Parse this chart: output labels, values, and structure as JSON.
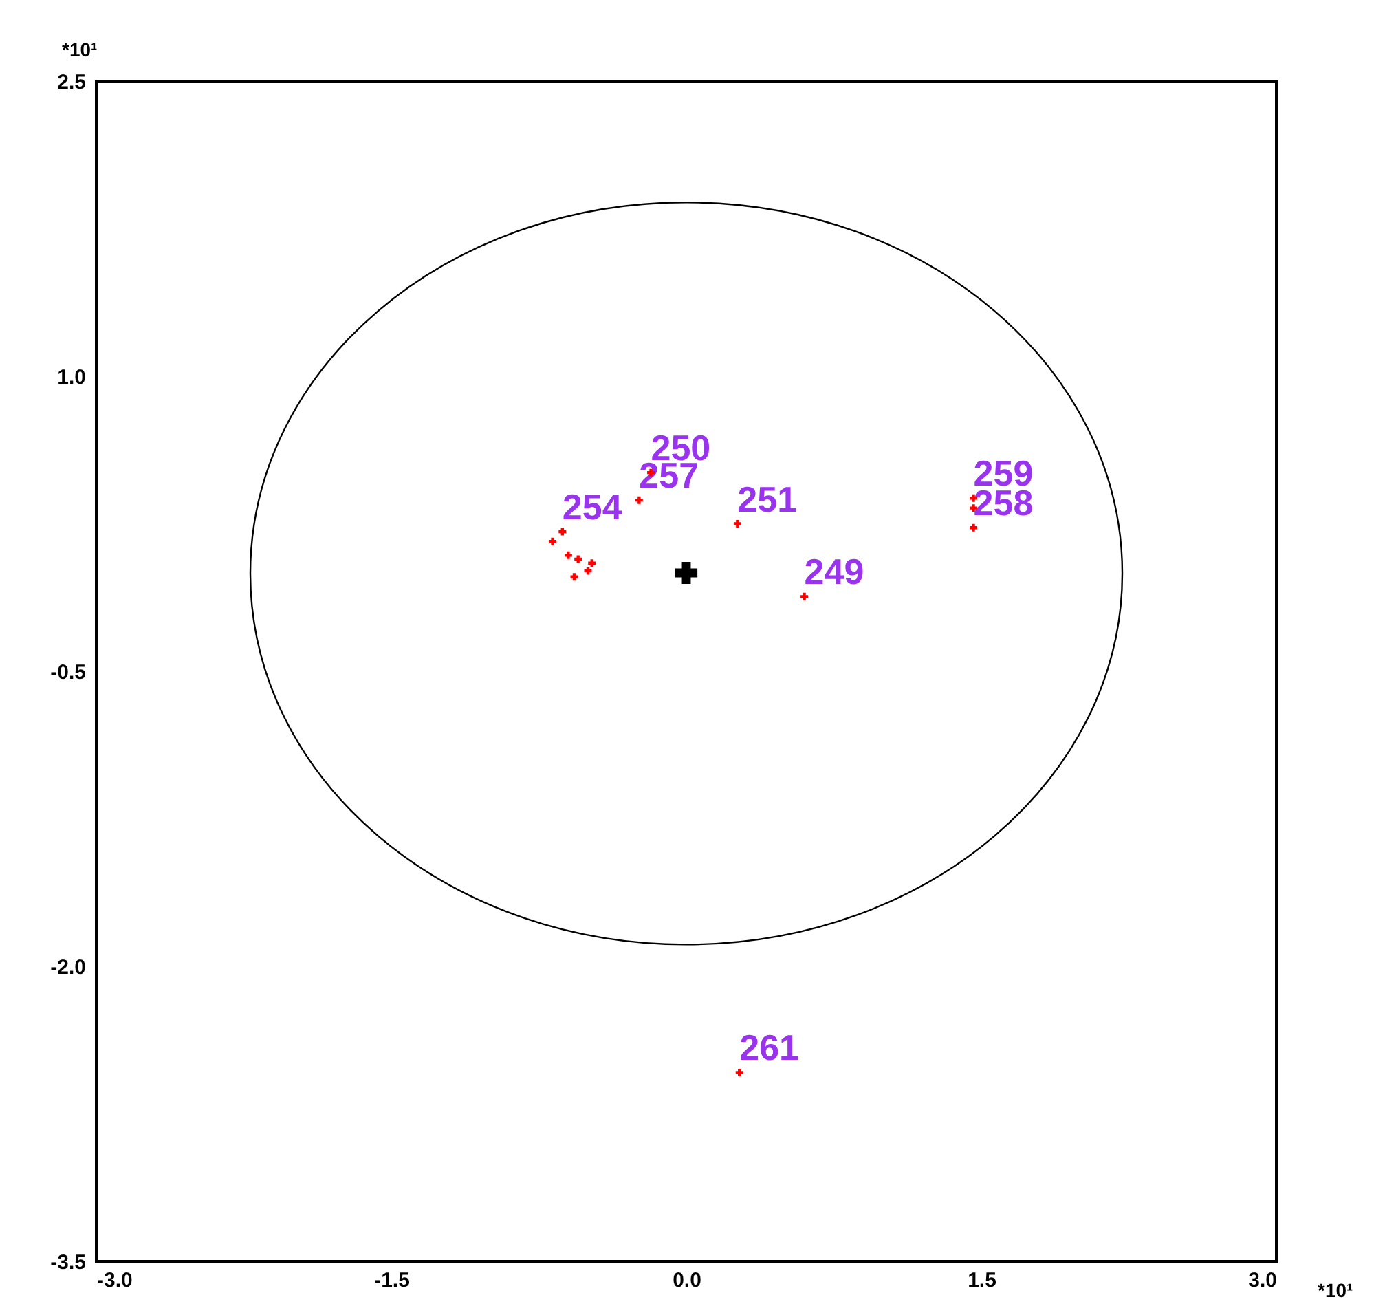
{
  "chart_data": {
    "type": "scatter",
    "xlim": [
      -3.0,
      3.0
    ],
    "ylim": [
      -3.5,
      2.5
    ],
    "xticks": [
      {
        "value": -3.0,
        "label": "-3.0"
      },
      {
        "value": -1.5,
        "label": "-1.5"
      },
      {
        "value": 0,
        "label": "0.0"
      },
      {
        "value": 1.5,
        "label": "1.5"
      },
      {
        "value": 3.0,
        "label": "3.0"
      }
    ],
    "yticks": [
      {
        "value": -3.5,
        "label": "-3.5"
      },
      {
        "value": -2.0,
        "label": "-2.0"
      },
      {
        "value": -0.5,
        "label": "-0.5"
      },
      {
        "value": 1.0,
        "label": "1.0"
      },
      {
        "value": 2.5,
        "label": "2.5"
      }
    ],
    "grid": false,
    "series": [
      {
        "type": "scatter",
        "color": "#000000",
        "marker": "cross",
        "x": [
          0
        ],
        "values": [
          0
        ]
      },
      {
        "type": "scatter",
        "color": "#ff0000",
        "marker": "cross",
        "x": [
          0.27,
          0.6,
          0.26,
          1.46,
          1.46,
          1.46,
          -0.18,
          -0.24,
          -0.63,
          -0.68,
          -0.6,
          -0.55,
          -0.57,
          -0.5,
          -0.48
        ],
        "values": [
          -2.54,
          -0.12,
          0.25,
          0.38,
          0.33,
          0.23,
          0.51,
          0.37,
          0.21,
          0.16,
          0.09,
          0.07,
          -0.02,
          0.01,
          0.05
        ]
      }
    ],
    "annotations": [
      {
        "text": "261",
        "x": 0.27,
        "y": -2.54
      },
      {
        "text": "249",
        "x": 0.6,
        "y": -0.12
      },
      {
        "text": "251",
        "x": 0.26,
        "y": 0.25
      },
      {
        "text": "259",
        "x": 1.46,
        "y": 0.38
      },
      {
        "text": "258",
        "x": 1.46,
        "y": 0.23
      },
      {
        "text": "250",
        "x": -0.18,
        "y": 0.51
      },
      {
        "text": "257",
        "x": -0.24,
        "y": 0.37
      },
      {
        "text": "254",
        "x": -0.63,
        "y": 0.21
      },
      "*10¹",
      "*10¹"
    ]
  }
}
